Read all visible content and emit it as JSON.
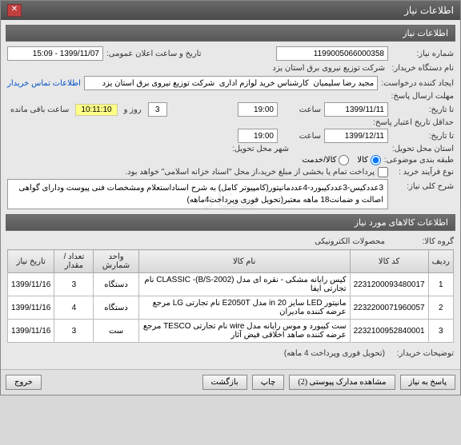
{
  "window": {
    "title": "اطلاعات نیاز"
  },
  "section1": {
    "title": "اطلاعات نیاز"
  },
  "fields": {
    "need_number_label": "شماره نیاز:",
    "need_number": "1199005066000358",
    "public_time_label": "تاریخ و ساعت اعلان عمومی:",
    "public_time": "1399/11/07 - 15:09",
    "buyer_org_label": "نام دستگاه خریدار:",
    "buyer_org": "شرکت توزیع نیروی برق استان یزد",
    "creator_label": "ایجاد کننده درخواست:",
    "creator": "مجید رضا سلیمیان  کارشناس خرید لوازم اداری  شرکت توزیع نیروی برق استان یزد",
    "contact_link": "اطلاعات تماس خریدار",
    "answer_deadline_label": "مهلت ارسال پاسخ:",
    "answer_to_label": "تا تاریخ:",
    "answer_date": "1399/11/11",
    "hour_label": "ساعت",
    "answer_hour": "19:00",
    "day_word": "روز و",
    "countdown": "10:11:10",
    "remain_label": "ساعت باقی مانده",
    "validity_label": "حداقل تاریخ اعتبار پاسخ:",
    "validity_to_label": "تا تاریخ:",
    "validity_date": "1399/12/11",
    "validity_hour": "19:00",
    "validity_days_value": "3",
    "delivery_place_label": "استان محل تحویل:",
    "delivery_city_label": "شهر محل تحویل:",
    "budget_label": "طبقه بندی موضوعی:",
    "goods_label": "کالا",
    "service_label": "کالا/خدمت",
    "process_label": "نوع فرآیند خرید :",
    "process_note": "پرداخت تمام یا بخشی از مبلغ خرید،از محل \"اسناد خزانه اسلامی\" خواهد بود.",
    "desc_label": "شرح کلی نیاز:",
    "desc_text": "3عددکیس-3عددکیبورد-4عددمانیتور(کامپیوتر کامل) به شرح اسناداستعلام ومشخصات فنی پیوست ودارای گواهی اصالت و ضمانت18 ماهه معتبر(تحویل فوری وپرداخت4ماهه)"
  },
  "section2": {
    "title": "اطلاعات کالاهای مورد نیاز"
  },
  "group_label": "گروه کالا:",
  "group_value": "محصولات الکترونیکی",
  "table": {
    "headers": [
      "ردیف",
      "کد کالا",
      "نام کالا",
      "واحد شمارش",
      "تعداد / مقدار",
      "تاریخ نیاز"
    ],
    "rows": [
      [
        "1",
        "2231200093480017",
        "کیس رایانه مشکی - نقره ای مدل CLASSIC -(B/S-2002) نام تجارتی ایفا",
        "دستگاه",
        "3",
        "1399/11/16"
      ],
      [
        "2",
        "2232200071960057",
        "مانیتور LED سایز 20 in مدل E2050T نام تجارتی LG مرجع عرضه کننده مادیران",
        "دستگاه",
        "4",
        "1399/11/16"
      ],
      [
        "3",
        "2232100952840001",
        "ست کیبورد و موس رایانه مدل wire نام تجارتی TESCO مرجع عرضه کننده صاهد اخلاقی فیض آثار",
        "ست",
        "3",
        "1399/11/16"
      ]
    ]
  },
  "buyer_note_label": "توضیحات خریدار:",
  "buyer_note": "(تحویل فوری وپرداخت 4 ماهه)",
  "buttons": {
    "reply": "پاسخ به نیاز",
    "attachments": "مشاهده مدارک پیوستی (2)",
    "print": "چاپ",
    "back": "بازگشت",
    "close": "خروج"
  }
}
